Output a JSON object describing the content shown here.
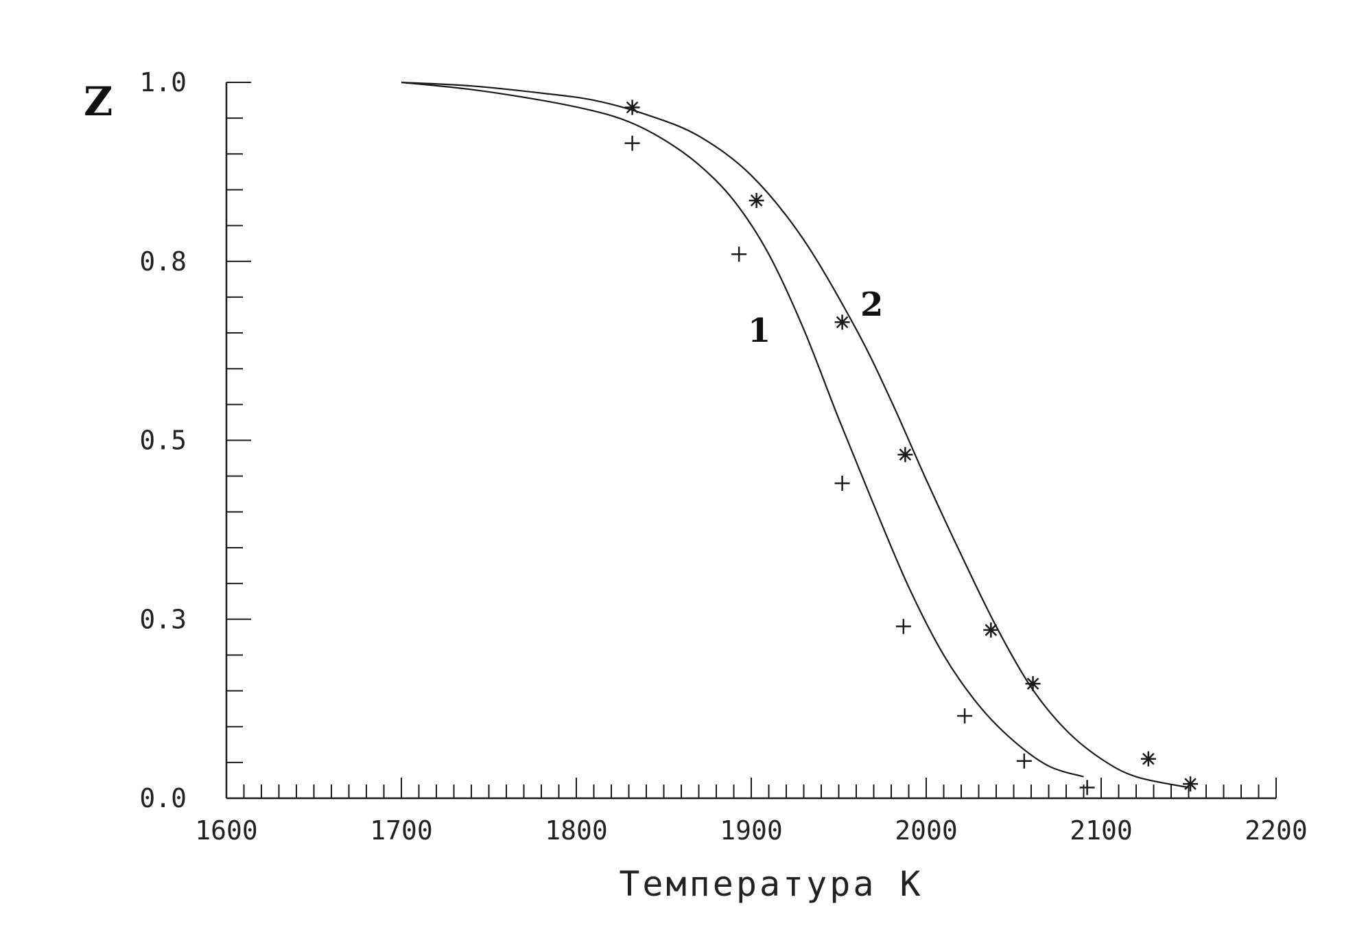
{
  "chart_data": {
    "type": "line",
    "title": "",
    "ylabel": "Z",
    "xlabel": "Температура К",
    "xlim": [
      1600,
      2200
    ],
    "ylim": [
      0,
      1.0
    ],
    "x_ticks": [
      1600,
      1700,
      1800,
      1900,
      2000,
      2100,
      2200
    ],
    "x_tick_labels": [
      "1600",
      "1700",
      "1800",
      "1900",
      "2000",
      "2100",
      "2200"
    ],
    "y_ticks": [
      0,
      0.25,
      0.5,
      0.75,
      1.0
    ],
    "y_tick_labels": [
      "0.0",
      "0.3",
      "0.5",
      "0.8",
      "1.0"
    ],
    "grid": false,
    "series": [
      {
        "name": "1",
        "marker": "plus",
        "curve": [
          [
            1700,
            1.0
          ],
          [
            1740,
            0.99
          ],
          [
            1780,
            0.975
          ],
          [
            1810,
            0.96
          ],
          [
            1830,
            0.945
          ],
          [
            1850,
            0.92
          ],
          [
            1870,
            0.885
          ],
          [
            1890,
            0.835
          ],
          [
            1910,
            0.76
          ],
          [
            1930,
            0.655
          ],
          [
            1950,
            0.53
          ],
          [
            1970,
            0.41
          ],
          [
            1990,
            0.295
          ],
          [
            2010,
            0.2
          ],
          [
            2030,
            0.13
          ],
          [
            2050,
            0.08
          ],
          [
            2070,
            0.045
          ],
          [
            2090,
            0.03
          ]
        ],
        "points": [
          [
            1832,
            0.915
          ],
          [
            1893,
            0.76
          ],
          [
            1952,
            0.44
          ],
          [
            1987,
            0.24
          ],
          [
            2022,
            0.115
          ],
          [
            2056,
            0.052
          ],
          [
            2092,
            0.015
          ]
        ]
      },
      {
        "name": "2",
        "marker": "asterisk",
        "curve": [
          [
            1700,
            1.0
          ],
          [
            1740,
            0.995
          ],
          [
            1780,
            0.985
          ],
          [
            1810,
            0.975
          ],
          [
            1840,
            0.955
          ],
          [
            1870,
            0.925
          ],
          [
            1900,
            0.87
          ],
          [
            1930,
            0.78
          ],
          [
            1960,
            0.655
          ],
          [
            1980,
            0.555
          ],
          [
            2000,
            0.445
          ],
          [
            2020,
            0.34
          ],
          [
            2040,
            0.24
          ],
          [
            2060,
            0.155
          ],
          [
            2080,
            0.095
          ],
          [
            2100,
            0.055
          ],
          [
            2120,
            0.03
          ],
          [
            2150,
            0.015
          ]
        ],
        "points": [
          [
            1832,
            0.965
          ],
          [
            1903,
            0.835
          ],
          [
            1952,
            0.665
          ],
          [
            1988,
            0.48
          ],
          [
            2037,
            0.235
          ],
          [
            2061,
            0.16
          ],
          [
            2127,
            0.055
          ],
          [
            2151,
            0.02
          ]
        ]
      }
    ],
    "curve_labels": [
      {
        "text": "1",
        "series": "1"
      },
      {
        "text": "2",
        "series": "2"
      }
    ]
  }
}
